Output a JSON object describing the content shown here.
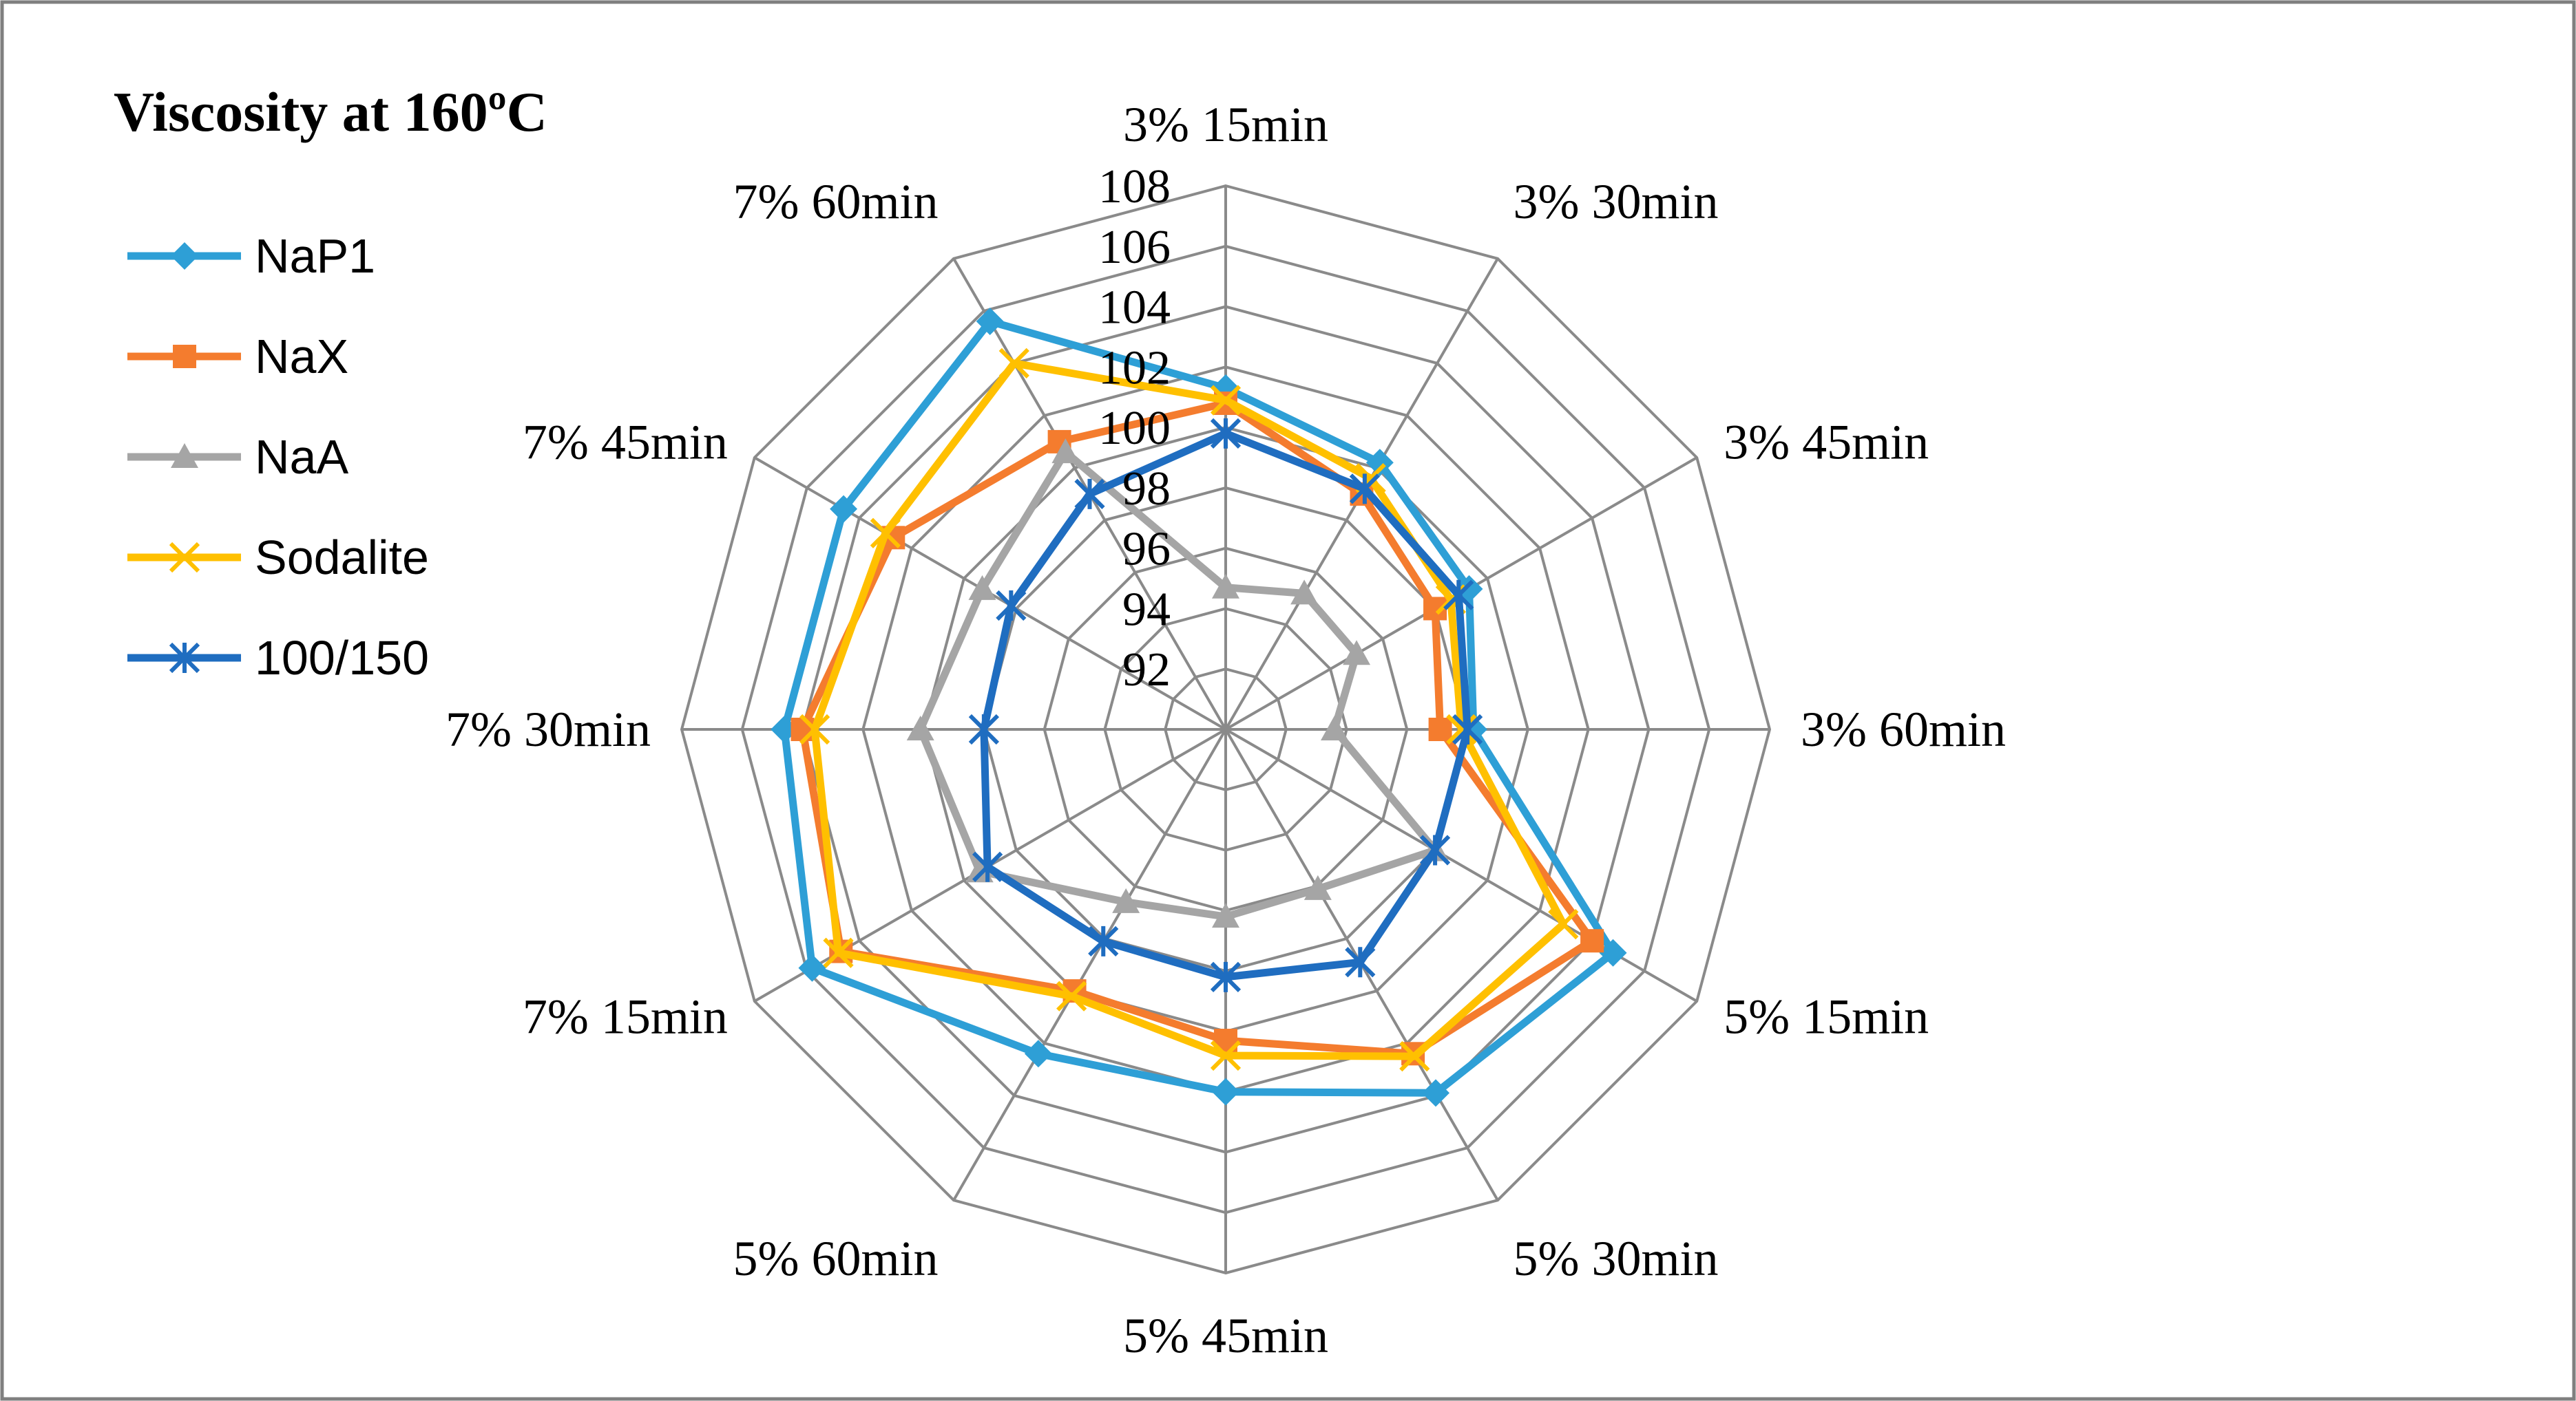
{
  "chart_data": {
    "type": "radar",
    "title": "Viscosity  at 160ºC",
    "categories": [
      "3% 15min",
      "3% 30min",
      "3% 45min",
      "3% 60min",
      "5% 15min",
      "5% 30min",
      "5% 45min",
      "5% 60min",
      "7% 15min",
      "7% 30min",
      "7% 45min",
      "7% 60min"
    ],
    "rlim": [
      90,
      108
    ],
    "ticks": [
      92,
      94,
      96,
      98,
      100,
      102,
      104,
      106,
      108
    ],
    "legend_position": "left",
    "series": [
      {
        "name": "NaP1",
        "color": "#2E9FD6",
        "marker": "diamond",
        "values": [
          101.3,
          100.2,
          99.3,
          98.2,
          104.8,
          103.9,
          102.0,
          102.4,
          105.8,
          104.6,
          104.6,
          105.6
        ]
      },
      {
        "name": "NaX",
        "color": "#F47C2E",
        "marker": "square",
        "values": [
          100.8,
          99.0,
          98.0,
          97.1,
          104.0,
          102.4,
          100.3,
          100.0,
          104.7,
          104.0,
          102.7,
          101.0
        ]
      },
      {
        "name": "NaA",
        "color": "#A5A5A5",
        "marker": "triangle",
        "values": [
          94.7,
          95.2,
          95.0,
          93.6,
          98.0,
          96.1,
          96.2,
          96.6,
          99.4,
          100.1,
          99.3,
          100.6
        ]
      },
      {
        "name": "Sodalite",
        "color": "#FFC000",
        "marker": "x",
        "values": [
          100.9,
          99.6,
          98.6,
          97.8,
          102.9,
          102.5,
          100.8,
          100.2,
          104.8,
          103.6,
          103.0,
          104.0
        ]
      },
      {
        "name": "100/150",
        "color": "#1F6DC0",
        "marker": "asterisk",
        "values": [
          99.8,
          99.2,
          98.9,
          98.0,
          98.0,
          98.9,
          98.2,
          98.1,
          99.1,
          98.0,
          98.2,
          99.0
        ]
      }
    ]
  }
}
